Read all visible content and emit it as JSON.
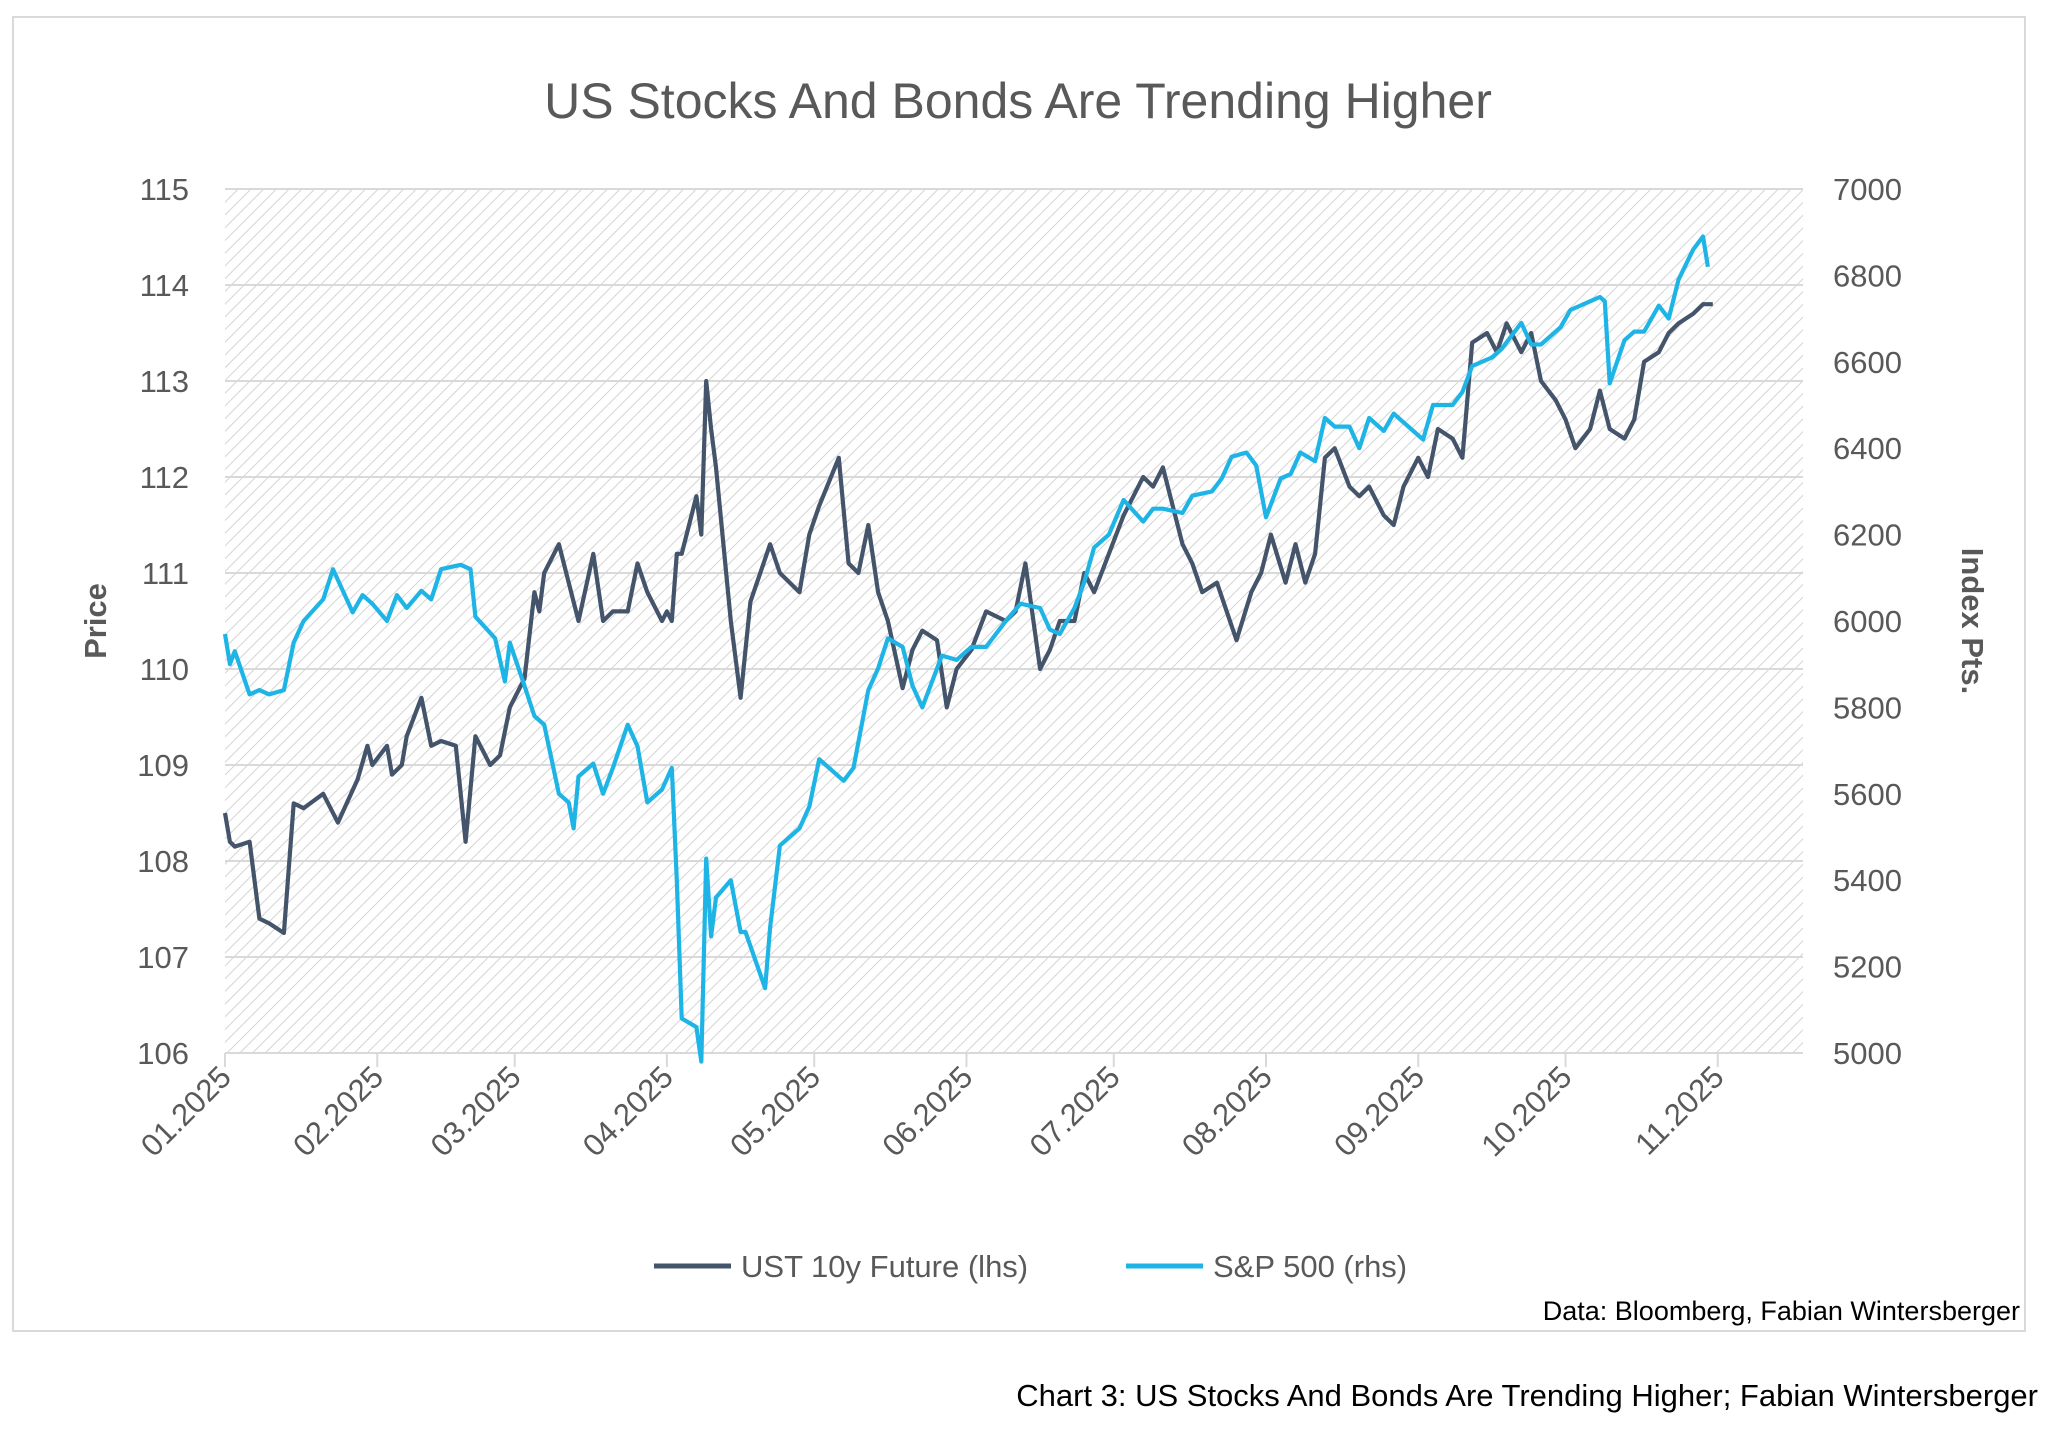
{
  "caption": "Chart 3: US Stocks And Bonds Are Trending Higher; Fabian Wintersberger",
  "source": "Data: Bloomberg, Fabian Wintersberger",
  "colors": {
    "ust": "#44546a",
    "spx": "#1eb4e6",
    "text": "#595959",
    "gridline": "#d9d9d9",
    "hatch": "#d4d4d4",
    "border": "#d9d9d9"
  },
  "chart_data": {
    "type": "line",
    "title": "US Stocks And Bonds Are Trending Higher",
    "ylabel_left": "Price",
    "ylabel_right": "Index Pts.",
    "y_left": {
      "min": 106,
      "max": 115,
      "ticks": [
        "106",
        "107",
        "108",
        "109",
        "110",
        "111",
        "112",
        "113",
        "114",
        "115"
      ]
    },
    "y_right": {
      "min": 5000,
      "max": 7000,
      "ticks": [
        "5000",
        "5200",
        "5400",
        "5600",
        "5800",
        "6000",
        "6200",
        "6400",
        "6600",
        "6800",
        "7000"
      ]
    },
    "x_ticks": [
      "01.2025",
      "02.2025",
      "03.2025",
      "04.2025",
      "05.2025",
      "06.2025",
      "07.2025",
      "08.2025",
      "09.2025",
      "10.2025",
      "11.2025"
    ],
    "grid": "horizontal gridlines, hatched plot area",
    "legend_position": "bottom",
    "series": [
      {
        "name": "UST 10y Future (lhs)",
        "axis": "left",
        "color": "#44546a",
        "points": [
          [
            "2025-01-01",
            108.5
          ],
          [
            "2025-01-02",
            108.2
          ],
          [
            "2025-01-03",
            108.15
          ],
          [
            "2025-01-06",
            108.2
          ],
          [
            "2025-01-08",
            107.4
          ],
          [
            "2025-01-10",
            107.35
          ],
          [
            "2025-01-13",
            107.25
          ],
          [
            "2025-01-15",
            108.6
          ],
          [
            "2025-01-17",
            108.55
          ],
          [
            "2025-01-21",
            108.7
          ],
          [
            "2025-01-24",
            108.4
          ],
          [
            "2025-01-28",
            108.85
          ],
          [
            "2025-01-30",
            109.2
          ],
          [
            "2025-01-31",
            109.0
          ],
          [
            "2025-02-03",
            109.2
          ],
          [
            "2025-02-04",
            108.9
          ],
          [
            "2025-02-06",
            109.0
          ],
          [
            "2025-02-07",
            109.3
          ],
          [
            "2025-02-10",
            109.7
          ],
          [
            "2025-02-12",
            109.2
          ],
          [
            "2025-02-14",
            109.25
          ],
          [
            "2025-02-17",
            109.2
          ],
          [
            "2025-02-19",
            108.2
          ],
          [
            "2025-02-21",
            109.3
          ],
          [
            "2025-02-24",
            109.0
          ],
          [
            "2025-02-26",
            109.1
          ],
          [
            "2025-02-28",
            109.6
          ],
          [
            "2025-03-03",
            109.9
          ],
          [
            "2025-03-05",
            110.8
          ],
          [
            "2025-03-06",
            110.6
          ],
          [
            "2025-03-07",
            111.0
          ],
          [
            "2025-03-10",
            111.3
          ],
          [
            "2025-03-12",
            110.9
          ],
          [
            "2025-03-14",
            110.5
          ],
          [
            "2025-03-17",
            111.2
          ],
          [
            "2025-03-19",
            110.5
          ],
          [
            "2025-03-21",
            110.6
          ],
          [
            "2025-03-24",
            110.6
          ],
          [
            "2025-03-26",
            111.1
          ],
          [
            "2025-03-28",
            110.8
          ],
          [
            "2025-03-31",
            110.5
          ],
          [
            "2025-04-01",
            110.6
          ],
          [
            "2025-04-02",
            110.5
          ],
          [
            "2025-04-03",
            111.2
          ],
          [
            "2025-04-04",
            111.2
          ],
          [
            "2025-04-07",
            111.8
          ],
          [
            "2025-04-08",
            111.4
          ],
          [
            "2025-04-09",
            113.0
          ],
          [
            "2025-04-10",
            112.5
          ],
          [
            "2025-04-11",
            112.1
          ],
          [
            "2025-04-14",
            110.5
          ],
          [
            "2025-04-16",
            109.7
          ],
          [
            "2025-04-18",
            110.7
          ],
          [
            "2025-04-22",
            111.3
          ],
          [
            "2025-04-24",
            111.0
          ],
          [
            "2025-04-28",
            110.8
          ],
          [
            "2025-04-30",
            111.4
          ],
          [
            "2025-05-02",
            111.7
          ],
          [
            "2025-05-06",
            112.2
          ],
          [
            "2025-05-08",
            111.1
          ],
          [
            "2025-05-10",
            111.0
          ],
          [
            "2025-05-12",
            111.5
          ],
          [
            "2025-05-14",
            110.8
          ],
          [
            "2025-05-16",
            110.5
          ],
          [
            "2025-05-19",
            109.8
          ],
          [
            "2025-05-21",
            110.2
          ],
          [
            "2025-05-23",
            110.4
          ],
          [
            "2025-05-26",
            110.3
          ],
          [
            "2025-05-28",
            109.6
          ],
          [
            "2025-05-30",
            110.0
          ],
          [
            "2025-06-02",
            110.2
          ],
          [
            "2025-06-05",
            110.6
          ],
          [
            "2025-06-09",
            110.5
          ],
          [
            "2025-06-11",
            110.6
          ],
          [
            "2025-06-13",
            111.1
          ],
          [
            "2025-06-16",
            110.0
          ],
          [
            "2025-06-18",
            110.2
          ],
          [
            "2025-06-20",
            110.5
          ],
          [
            "2025-06-23",
            110.5
          ],
          [
            "2025-06-25",
            111.0
          ],
          [
            "2025-06-27",
            110.8
          ],
          [
            "2025-06-30",
            111.2
          ],
          [
            "2025-07-03",
            111.6
          ],
          [
            "2025-07-07",
            112.0
          ],
          [
            "2025-07-09",
            111.9
          ],
          [
            "2025-07-11",
            112.1
          ],
          [
            "2025-07-15",
            111.3
          ],
          [
            "2025-07-17",
            111.1
          ],
          [
            "2025-07-19",
            110.8
          ],
          [
            "2025-07-22",
            110.9
          ],
          [
            "2025-07-24",
            110.6
          ],
          [
            "2025-07-26",
            110.3
          ],
          [
            "2025-07-29",
            110.8
          ],
          [
            "2025-07-31",
            111.0
          ],
          [
            "2025-08-02",
            111.4
          ],
          [
            "2025-08-05",
            110.9
          ],
          [
            "2025-08-07",
            111.3
          ],
          [
            "2025-08-09",
            110.9
          ],
          [
            "2025-08-11",
            111.2
          ],
          [
            "2025-08-13",
            112.2
          ],
          [
            "2025-08-15",
            112.3
          ],
          [
            "2025-08-18",
            111.9
          ],
          [
            "2025-08-20",
            111.8
          ],
          [
            "2025-08-22",
            111.9
          ],
          [
            "2025-08-25",
            111.6
          ],
          [
            "2025-08-27",
            111.5
          ],
          [
            "2025-08-29",
            111.9
          ],
          [
            "2025-09-01",
            112.2
          ],
          [
            "2025-09-03",
            112.0
          ],
          [
            "2025-09-05",
            112.5
          ],
          [
            "2025-09-08",
            112.4
          ],
          [
            "2025-09-10",
            112.2
          ],
          [
            "2025-09-12",
            113.4
          ],
          [
            "2025-09-15",
            113.5
          ],
          [
            "2025-09-17",
            113.3
          ],
          [
            "2025-09-19",
            113.6
          ],
          [
            "2025-09-22",
            113.3
          ],
          [
            "2025-09-24",
            113.5
          ],
          [
            "2025-09-26",
            113.0
          ],
          [
            "2025-09-29",
            112.8
          ],
          [
            "2025-10-01",
            112.6
          ],
          [
            "2025-10-03",
            112.3
          ],
          [
            "2025-10-06",
            112.5
          ],
          [
            "2025-10-08",
            112.9
          ],
          [
            "2025-10-10",
            112.5
          ],
          [
            "2025-10-13",
            112.4
          ],
          [
            "2025-10-15",
            112.6
          ],
          [
            "2025-10-17",
            113.2
          ],
          [
            "2025-10-20",
            113.3
          ],
          [
            "2025-10-22",
            113.5
          ],
          [
            "2025-10-24",
            113.6
          ],
          [
            "2025-10-27",
            113.7
          ],
          [
            "2025-10-29",
            113.8
          ],
          [
            "2025-10-31",
            113.8
          ]
        ]
      },
      {
        "name": "S&P 500 (rhs)",
        "axis": "right",
        "color": "#1eb4e6",
        "points": [
          [
            "2025-01-01",
            5970
          ],
          [
            "2025-01-02",
            5900
          ],
          [
            "2025-01-03",
            5930
          ],
          [
            "2025-01-06",
            5830
          ],
          [
            "2025-01-08",
            5840
          ],
          [
            "2025-01-10",
            5830
          ],
          [
            "2025-01-13",
            5840
          ],
          [
            "2025-01-15",
            5950
          ],
          [
            "2025-01-17",
            6000
          ],
          [
            "2025-01-21",
            6050
          ],
          [
            "2025-01-23",
            6120
          ],
          [
            "2025-01-27",
            6020
          ],
          [
            "2025-01-29",
            6060
          ],
          [
            "2025-01-31",
            6040
          ],
          [
            "2025-02-03",
            6000
          ],
          [
            "2025-02-05",
            6060
          ],
          [
            "2025-02-07",
            6030
          ],
          [
            "2025-02-10",
            6070
          ],
          [
            "2025-02-12",
            6050
          ],
          [
            "2025-02-14",
            6120
          ],
          [
            "2025-02-18",
            6130
          ],
          [
            "2025-02-20",
            6120
          ],
          [
            "2025-02-21",
            6010
          ],
          [
            "2025-02-25",
            5960
          ],
          [
            "2025-02-27",
            5860
          ],
          [
            "2025-02-28",
            5950
          ],
          [
            "2025-03-03",
            5850
          ],
          [
            "2025-03-05",
            5780
          ],
          [
            "2025-03-07",
            5760
          ],
          [
            "2025-03-10",
            5600
          ],
          [
            "2025-03-12",
            5580
          ],
          [
            "2025-03-13",
            5520
          ],
          [
            "2025-03-14",
            5640
          ],
          [
            "2025-03-17",
            5670
          ],
          [
            "2025-03-19",
            5600
          ],
          [
            "2025-03-21",
            5660
          ],
          [
            "2025-03-24",
            5760
          ],
          [
            "2025-03-26",
            5710
          ],
          [
            "2025-03-28",
            5580
          ],
          [
            "2025-03-31",
            5610
          ],
          [
            "2025-04-02",
            5660
          ],
          [
            "2025-04-03",
            5400
          ],
          [
            "2025-04-04",
            5080
          ],
          [
            "2025-04-07",
            5060
          ],
          [
            "2025-04-08",
            4980
          ],
          [
            "2025-04-09",
            5450
          ],
          [
            "2025-04-10",
            5270
          ],
          [
            "2025-04-11",
            5360
          ],
          [
            "2025-04-14",
            5400
          ],
          [
            "2025-04-16",
            5280
          ],
          [
            "2025-04-17",
            5280
          ],
          [
            "2025-04-21",
            5150
          ],
          [
            "2025-04-22",
            5290
          ],
          [
            "2025-04-24",
            5480
          ],
          [
            "2025-04-28",
            5520
          ],
          [
            "2025-04-30",
            5570
          ],
          [
            "2025-05-02",
            5680
          ],
          [
            "2025-05-05",
            5650
          ],
          [
            "2025-05-07",
            5630
          ],
          [
            "2025-05-09",
            5660
          ],
          [
            "2025-05-12",
            5840
          ],
          [
            "2025-05-14",
            5890
          ],
          [
            "2025-05-16",
            5960
          ],
          [
            "2025-05-19",
            5940
          ],
          [
            "2025-05-21",
            5850
          ],
          [
            "2025-05-23",
            5800
          ],
          [
            "2025-05-27",
            5920
          ],
          [
            "2025-05-30",
            5910
          ],
          [
            "2025-06-02",
            5940
          ],
          [
            "2025-06-05",
            5940
          ],
          [
            "2025-06-09",
            6000
          ],
          [
            "2025-06-12",
            6040
          ],
          [
            "2025-06-16",
            6030
          ],
          [
            "2025-06-18",
            5980
          ],
          [
            "2025-06-20",
            5970
          ],
          [
            "2025-06-23",
            6030
          ],
          [
            "2025-06-25",
            6090
          ],
          [
            "2025-06-27",
            6170
          ],
          [
            "2025-06-30",
            6200
          ],
          [
            "2025-07-03",
            6280
          ],
          [
            "2025-07-07",
            6230
          ],
          [
            "2025-07-09",
            6260
          ],
          [
            "2025-07-11",
            6260
          ],
          [
            "2025-07-15",
            6250
          ],
          [
            "2025-07-17",
            6290
          ],
          [
            "2025-07-21",
            6300
          ],
          [
            "2025-07-23",
            6330
          ],
          [
            "2025-07-25",
            6380
          ],
          [
            "2025-07-28",
            6390
          ],
          [
            "2025-07-30",
            6360
          ],
          [
            "2025-08-01",
            6240
          ],
          [
            "2025-08-04",
            6330
          ],
          [
            "2025-08-06",
            6340
          ],
          [
            "2025-08-08",
            6390
          ],
          [
            "2025-08-11",
            6370
          ],
          [
            "2025-08-13",
            6470
          ],
          [
            "2025-08-15",
            6450
          ],
          [
            "2025-08-18",
            6450
          ],
          [
            "2025-08-20",
            6400
          ],
          [
            "2025-08-22",
            6470
          ],
          [
            "2025-08-25",
            6440
          ],
          [
            "2025-08-27",
            6480
          ],
          [
            "2025-08-29",
            6460
          ],
          [
            "2025-09-02",
            6420
          ],
          [
            "2025-09-04",
            6500
          ],
          [
            "2025-09-08",
            6500
          ],
          [
            "2025-09-10",
            6530
          ],
          [
            "2025-09-12",
            6590
          ],
          [
            "2025-09-16",
            6610
          ],
          [
            "2025-09-18",
            6630
          ],
          [
            "2025-09-22",
            6690
          ],
          [
            "2025-09-24",
            6640
          ],
          [
            "2025-09-26",
            6640
          ],
          [
            "2025-09-30",
            6680
          ],
          [
            "2025-10-02",
            6720
          ],
          [
            "2025-10-06",
            6740
          ],
          [
            "2025-10-08",
            6750
          ],
          [
            "2025-10-09",
            6740
          ],
          [
            "2025-10-10",
            6550
          ],
          [
            "2025-10-13",
            6650
          ],
          [
            "2025-10-15",
            6670
          ],
          [
            "2025-10-17",
            6670
          ],
          [
            "2025-10-20",
            6730
          ],
          [
            "2025-10-22",
            6700
          ],
          [
            "2025-10-24",
            6790
          ],
          [
            "2025-10-27",
            6860
          ],
          [
            "2025-10-29",
            6890
          ],
          [
            "2025-10-30",
            6820
          ]
        ]
      }
    ]
  }
}
